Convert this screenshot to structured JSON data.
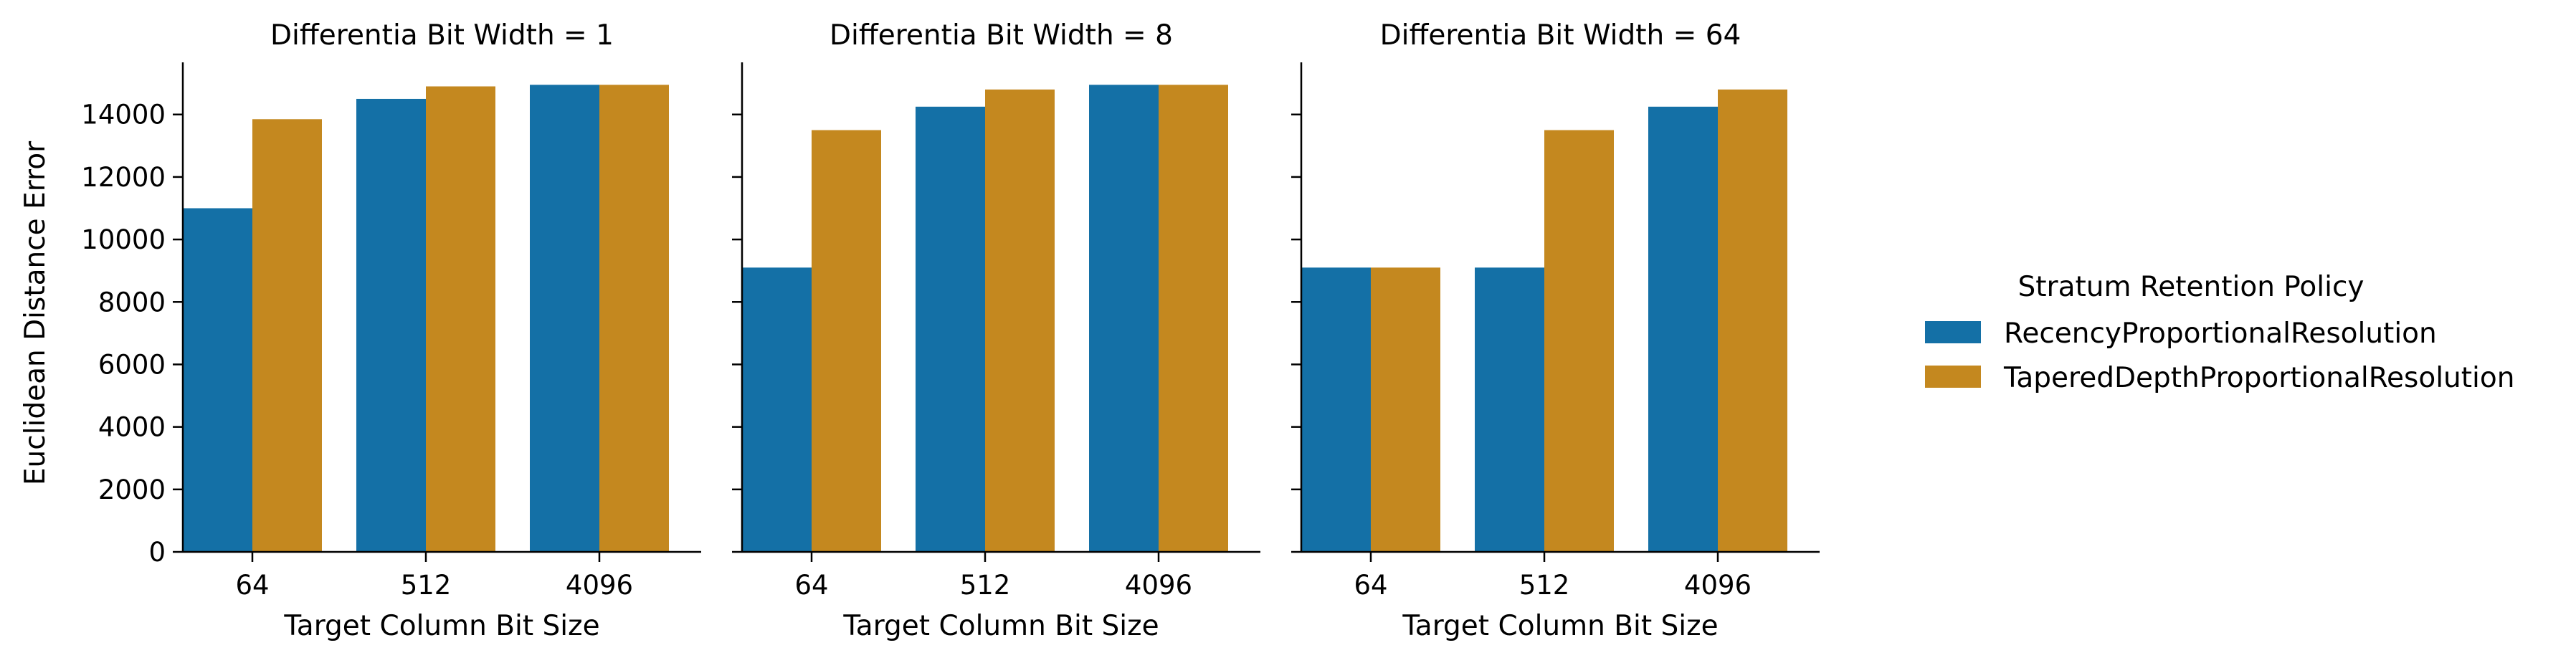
{
  "chart_data": {
    "type": "bar",
    "facet_label": "Differentia Bit Width",
    "xlabel": "Target Column Bit Size",
    "ylabel": "Euclidean Distance Error",
    "categories": [
      "64",
      "512",
      "4096"
    ],
    "ylim": [
      0,
      15600
    ],
    "yticks": [
      0,
      2000,
      4000,
      6000,
      8000,
      10000,
      12000,
      14000
    ],
    "grid": false,
    "legend": {
      "title": "Stratum Retention Policy",
      "placement": "right"
    },
    "colors": {
      "RecencyProportionalResolution": "#1470a6",
      "TaperedDepthProportionalResolution": "#c4881f"
    },
    "series_names": [
      "RecencyProportionalResolution",
      "TaperedDepthProportionalResolution"
    ],
    "panels": [
      {
        "title": "Differentia Bit Width = 1",
        "series": [
          {
            "name": "RecencyProportionalResolution",
            "values": [
              11000,
              14500,
              14950
            ]
          },
          {
            "name": "TaperedDepthProportionalResolution",
            "values": [
              13850,
              14900,
              14950
            ]
          }
        ]
      },
      {
        "title": "Differentia Bit Width = 8",
        "series": [
          {
            "name": "RecencyProportionalResolution",
            "values": [
              9100,
              14250,
              14950
            ]
          },
          {
            "name": "TaperedDepthProportionalResolution",
            "values": [
              13500,
              14800,
              14950
            ]
          }
        ]
      },
      {
        "title": "Differentia Bit Width = 64",
        "series": [
          {
            "name": "RecencyProportionalResolution",
            "values": [
              9100,
              9100,
              14250
            ]
          },
          {
            "name": "TaperedDepthProportionalResolution",
            "values": [
              9100,
              13500,
              14800
            ]
          }
        ]
      }
    ]
  }
}
